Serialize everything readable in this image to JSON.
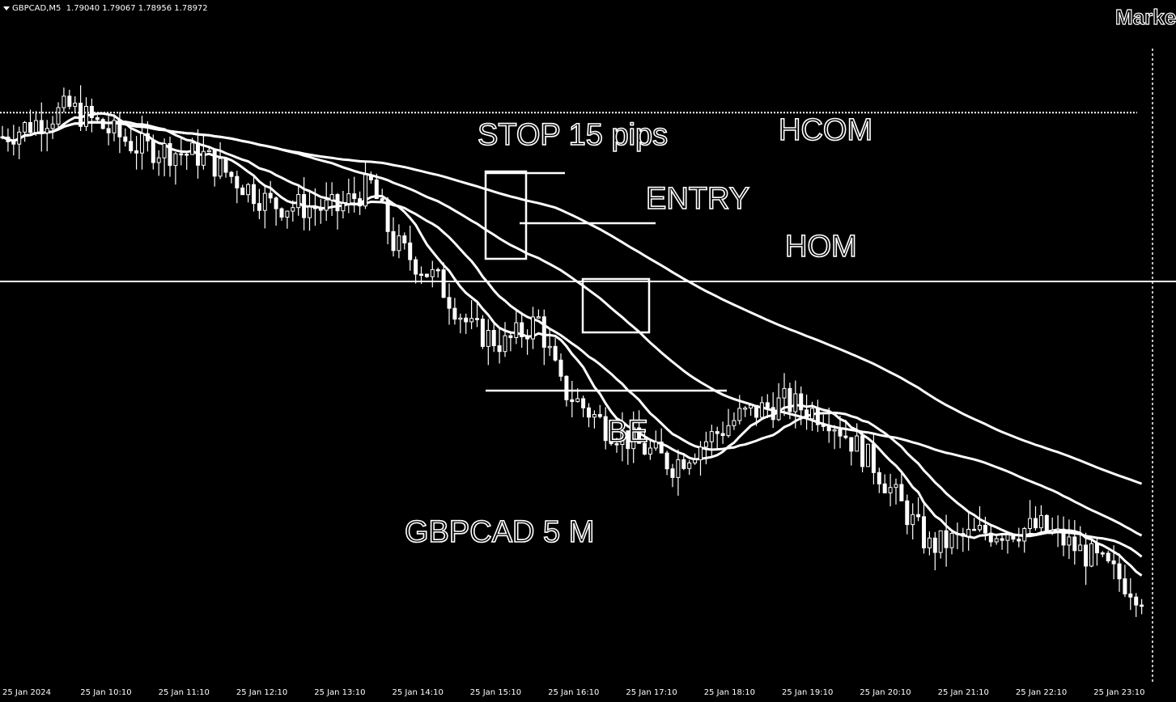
{
  "header": {
    "symbol": "GBPCAD,M5",
    "quote": "1.79040 1.79067 1.78956 1.78972",
    "market_label": "Marke"
  },
  "annotations": {
    "stop": "STOP 15 pips",
    "hcom": "HCOM",
    "entry": "ENTRY",
    "hom": "HOM",
    "be": "BE",
    "title": "GBPCAD 5 M"
  },
  "colors": {
    "background": "#000000",
    "foreground": "#ffffff"
  },
  "chart_data": {
    "type": "candlestick",
    "symbol": "GBPCAD",
    "timeframe": "M5",
    "x_tick_labels": [
      "25 Jan 2024",
      "25 Jan 10:10",
      "25 Jan 11:10",
      "25 Jan 12:10",
      "25 Jan 13:10",
      "25 Jan 14:10",
      "25 Jan 15:10",
      "25 Jan 16:10",
      "25 Jan 17:10",
      "25 Jan 18:10",
      "25 Jan 19:10",
      "25 Jan 20:10",
      "25 Jan 21:10",
      "25 Jan 22:10",
      "25 Jan 23:10"
    ],
    "grid": false,
    "levels": [
      {
        "name": "HCOM",
        "style": "dotted",
        "value": 1.7915
      },
      {
        "name": "HOM",
        "style": "solid",
        "value": 1.788
      }
    ],
    "close_path": [
      [
        0,
        1.791
      ],
      [
        12,
        1.7916
      ],
      [
        24,
        1.7908
      ],
      [
        36,
        1.7906
      ],
      [
        48,
        1.7896
      ],
      [
        60,
        1.7895
      ],
      [
        66,
        1.79
      ],
      [
        70,
        1.7888
      ],
      [
        78,
        1.788
      ],
      [
        84,
        1.787
      ],
      [
        90,
        1.7867
      ],
      [
        96,
        1.7872
      ],
      [
        100,
        1.7858
      ],
      [
        108,
        1.785
      ],
      [
        120,
        1.7842
      ],
      [
        132,
        1.7852
      ],
      [
        140,
        1.7855
      ],
      [
        148,
        1.7852
      ],
      [
        156,
        1.7842
      ],
      [
        166,
        1.7825
      ],
      [
        176,
        1.7828
      ],
      [
        186,
        1.7829
      ],
      [
        196,
        1.7822
      ],
      [
        204,
        1.7815
      ]
    ]
  }
}
